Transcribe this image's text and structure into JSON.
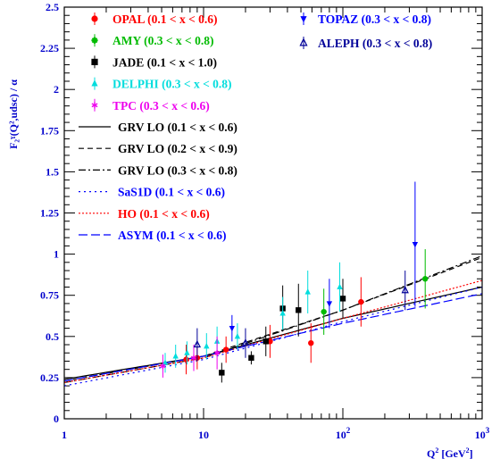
{
  "chart_data": {
    "type": "scatter",
    "xscale": "log",
    "xlim": [
      1,
      1000
    ],
    "ylim": [
      0,
      2.5
    ],
    "xlabel_main": "Q",
    "xlabel_sup": "2",
    "xlabel_unit_open": " [GeV",
    "xlabel_unit_sup": "2",
    "xlabel_unit_close": "]",
    "ylabel": "F₂ˠ(Q²,udsc) / α",
    "x_ticks": [
      {
        "value": 1,
        "base": "1",
        "exp": ""
      },
      {
        "value": 10,
        "base": "10",
        "exp": ""
      },
      {
        "value": 100,
        "base": "10",
        "exp": "2"
      },
      {
        "value": 1000,
        "base": "10",
        "exp": "3"
      }
    ],
    "y_ticks": [
      {
        "value": 0,
        "label": "0"
      },
      {
        "value": 0.25,
        "label": "0.25"
      },
      {
        "value": 0.5,
        "label": "0.5"
      },
      {
        "value": 0.75,
        "label": "0.75"
      },
      {
        "value": 1,
        "label": "1"
      },
      {
        "value": 1.25,
        "label": "1.25"
      },
      {
        "value": 1.5,
        "label": "1.5"
      },
      {
        "value": 1.75,
        "label": "1.75"
      },
      {
        "value": 2,
        "label": "2"
      },
      {
        "value": 2.25,
        "label": "2.25"
      },
      {
        "value": 2.5,
        "label": "2.5"
      }
    ],
    "series": [
      {
        "name": "OPAL (0.1 < x < 0.6)",
        "marker": "circle",
        "color": "#ff0000",
        "points": [
          [
            7.5,
            0.36,
            0.09
          ],
          [
            9,
            0.37,
            0.07
          ],
          [
            14.5,
            0.42,
            0.08
          ],
          [
            30,
            0.47,
            0.1
          ],
          [
            59,
            0.46,
            0.12
          ],
          [
            135,
            0.71,
            0.15
          ]
        ]
      },
      {
        "name": "AMY (0.3 < x < 0.8)",
        "marker": "star",
        "color": "#00bb00",
        "points": [
          [
            73,
            0.65,
            0.14
          ],
          [
            390,
            0.85,
            0.18
          ]
        ]
      },
      {
        "name": "JADE (0.1 < x < 1.0)",
        "marker": "square",
        "color": "#000000",
        "points": [
          [
            13.5,
            0.28,
            0.06
          ],
          [
            22,
            0.37,
            0.04
          ],
          [
            28,
            0.47,
            0.09
          ],
          [
            37,
            0.67,
            0.14
          ],
          [
            48,
            0.66,
            0.16
          ],
          [
            100,
            0.73,
            0.12
          ]
        ]
      },
      {
        "name": "DELPHI (0.3 < x < 0.8)",
        "marker": "triangle-up",
        "color": "#00dddd",
        "points": [
          [
            5.3,
            0.34,
            0.06
          ],
          [
            6.3,
            0.38,
            0.07
          ],
          [
            7.6,
            0.4,
            0.07
          ],
          [
            10.5,
            0.44,
            0.08
          ],
          [
            12.5,
            0.47,
            0.09
          ],
          [
            17.5,
            0.5,
            0.08
          ],
          [
            37,
            0.64,
            0.1
          ],
          [
            56,
            0.77,
            0.13
          ],
          [
            95,
            0.8,
            0.15
          ]
        ]
      },
      {
        "name": "TPC (0.3 < x < 0.6)",
        "marker": "asterisk",
        "color": "#ee00ee",
        "points": [
          [
            5.1,
            0.32,
            0.07
          ],
          [
            8.5,
            0.37,
            0.08
          ],
          [
            12.5,
            0.4,
            0.1
          ]
        ]
      },
      {
        "name": "TOPAZ (0.3 < x < 0.8)",
        "marker": "triangle-down",
        "color": "#0000ff",
        "points": [
          [
            16,
            0.55,
            0.08
          ],
          [
            80,
            0.7,
            0.15
          ],
          [
            330,
            1.06,
            0.38
          ]
        ]
      },
      {
        "name": "ALEPH (0.3 < x < 0.8)",
        "marker": "triangle-open",
        "color": "#000099",
        "points": [
          [
            9,
            0.45,
            0.1
          ],
          [
            20,
            0.46,
            0.09
          ],
          [
            280,
            0.78,
            0.12
          ]
        ]
      }
    ],
    "curves": [
      {
        "name": "GRV LO (0.1 < x < 0.6)",
        "dash": "",
        "color": "#000000",
        "points": [
          [
            1,
            0.24
          ],
          [
            10,
            0.38
          ],
          [
            100,
            0.61
          ],
          [
            1000,
            0.8
          ]
        ]
      },
      {
        "name": "GRV LO (0.2 < x < 0.9)",
        "dash": "6,4",
        "color": "#000000",
        "points": [
          [
            1,
            0.23
          ],
          [
            10,
            0.38
          ],
          [
            100,
            0.66
          ],
          [
            1000,
            0.98
          ]
        ]
      },
      {
        "name": "GRV LO (0.3 < x < 0.8)",
        "dash": "8,3,2,3",
        "color": "#000000",
        "points": [
          [
            1,
            0.22
          ],
          [
            10,
            0.37
          ],
          [
            100,
            0.66
          ],
          [
            1000,
            0.99
          ]
        ]
      },
      {
        "name": "SaS1D (0.1 < x < 0.6)",
        "dash": "2,4",
        "color": "#0000ff",
        "points": [
          [
            1,
            0.2
          ],
          [
            10,
            0.36
          ],
          [
            100,
            0.59
          ],
          [
            1000,
            0.8
          ]
        ]
      },
      {
        "name": "HO (0.1 < x < 0.6)",
        "dash": "2,2",
        "color": "#ff0000",
        "points": [
          [
            1,
            0.22
          ],
          [
            10,
            0.37
          ],
          [
            100,
            0.61
          ],
          [
            1000,
            0.84
          ]
        ]
      },
      {
        "name": "ASYM (0.1 < x < 0.6)",
        "dash": "10,4",
        "color": "#0000ff",
        "points": [
          [
            1,
            0.23
          ],
          [
            10,
            0.38
          ],
          [
            100,
            0.58
          ],
          [
            1000,
            0.76
          ]
        ]
      }
    ]
  }
}
